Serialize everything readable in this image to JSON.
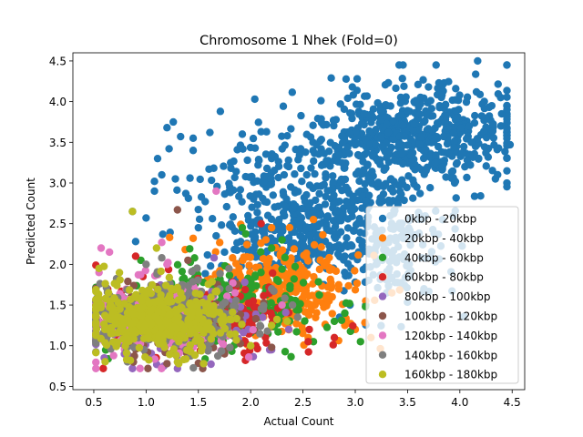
{
  "chart_data": {
    "type": "scatter",
    "title": "Chromosome 1 Nhek (Fold=0)",
    "xlabel": "Actual Count",
    "ylabel": "Predicted Count",
    "xlim": [
      0.3,
      4.62
    ],
    "ylim": [
      0.46,
      4.6
    ],
    "x_ticks": [
      0.5,
      1.0,
      1.5,
      2.0,
      2.5,
      3.0,
      3.5,
      4.0,
      4.5
    ],
    "y_ticks": [
      0.5,
      1.0,
      1.5,
      2.0,
      2.5,
      3.0,
      3.5,
      4.0,
      4.5
    ],
    "x_tick_labels": [
      "0.5",
      "1.0",
      "1.5",
      "2.0",
      "2.5",
      "3.0",
      "3.5",
      "4.0",
      "4.5"
    ],
    "y_tick_labels": [
      "0.5",
      "1.0",
      "1.5",
      "2.0",
      "2.5",
      "3.0",
      "3.5",
      "4.0",
      "4.5"
    ],
    "grid": false,
    "legend_position": "lower-right",
    "series": [
      {
        "name": "0kbp - 20kbp",
        "color": "#1f77b4",
        "points": [
          [
            4.17,
            4.5
          ],
          [
            2.77,
            4.29
          ],
          [
            4.39,
            4.05
          ],
          [
            4.28,
            3.93
          ],
          [
            3.85,
            4.23
          ],
          [
            3.8,
            4.23
          ],
          [
            4.48,
            3.47
          ],
          [
            1.71,
            3.88
          ],
          [
            1.26,
            3.75
          ],
          [
            1.2,
            3.68
          ],
          [
            1.61,
            3.62
          ],
          [
            1.33,
            3.57
          ],
          [
            1.45,
            3.55
          ],
          [
            1.45,
            3.4
          ],
          [
            1.22,
            3.42
          ],
          [
            2.1,
            3.63
          ],
          [
            1.92,
            3.6
          ],
          [
            1.11,
            3.3
          ],
          [
            1.15,
            3.1
          ],
          [
            1.08,
            3.02
          ],
          [
            1.28,
            3.05
          ],
          [
            1.42,
            3.06
          ],
          [
            1.38,
            2.87
          ],
          [
            1.08,
            2.9
          ],
          [
            1.0,
            2.57
          ],
          [
            0.87,
            2.65
          ],
          [
            1.16,
            2.37
          ],
          [
            0.9,
            2.28
          ],
          [
            1.5,
            2.45
          ],
          [
            1.67,
            2.35
          ],
          [
            1.8,
            2.95
          ],
          [
            2.2,
            3.3
          ],
          [
            2.35,
            3.58
          ],
          [
            2.32,
            3.1
          ],
          [
            3.3,
            3.95
          ],
          [
            3.6,
            4.21
          ],
          [
            3.7,
            4.18
          ],
          [
            3.2,
            3.3
          ],
          [
            3.95,
            3.0
          ],
          [
            4.4,
            3.85
          ],
          [
            4.15,
            3.45
          ],
          [
            3.1,
            2.7
          ],
          [
            2.9,
            2.1
          ],
          [
            2.7,
            1.75
          ],
          [
            3.2,
            2.0
          ],
          [
            2.95,
            1.5
          ],
          [
            3.1,
            1.5
          ],
          [
            3.3,
            1.65
          ],
          [
            2.85,
            1.35
          ],
          [
            1.75,
            2.15
          ],
          [
            1.92,
            2.05
          ]
        ],
        "clusters": [
          {
            "cx": 3.6,
            "cy": 3.6,
            "sx": 0.45,
            "sy": 0.3,
            "n": 500,
            "seed": 11
          },
          {
            "cx": 2.9,
            "cy": 2.9,
            "sx": 0.45,
            "sy": 0.45,
            "n": 280,
            "seed": 12
          },
          {
            "cx": 2.3,
            "cy": 2.35,
            "sx": 0.4,
            "sy": 0.3,
            "n": 220,
            "seed": 13
          },
          {
            "cx": 3.3,
            "cy": 2.2,
            "sx": 0.3,
            "sy": 0.35,
            "n": 130,
            "seed": 14
          },
          {
            "cx": 2.0,
            "cy": 3.0,
            "sx": 0.35,
            "sy": 0.35,
            "n": 60,
            "seed": 15
          }
        ]
      },
      {
        "name": "20kbp - 40kbp",
        "color": "#ff7f0e",
        "points": [
          [
            3.35,
            1.65
          ],
          [
            2.2,
            2.45
          ],
          [
            2.6,
            2.55
          ],
          [
            3.1,
            1.55
          ],
          [
            3.15,
            1.1
          ],
          [
            2.55,
            1.1
          ],
          [
            1.45,
            2.32
          ],
          [
            3.0,
            1.2
          ],
          [
            2.9,
            1.25
          ],
          [
            2.75,
            1.55
          ]
        ],
        "clusters": [
          {
            "cx": 2.3,
            "cy": 1.7,
            "sx": 0.38,
            "sy": 0.3,
            "n": 280,
            "seed": 21
          }
        ]
      },
      {
        "name": "40kbp - 60kbp",
        "color": "#2ca02c",
        "points": [
          [
            2.2,
            2.2
          ],
          [
            2.3,
            2.3
          ],
          [
            2.8,
            1.3
          ],
          [
            2.9,
            1.4
          ],
          [
            1.92,
            2.45
          ],
          [
            2.6,
            1.05
          ],
          [
            0.95,
            2.05
          ],
          [
            3.05,
            1.05
          ]
        ],
        "clusters": [
          {
            "cx": 1.8,
            "cy": 1.5,
            "sx": 0.45,
            "sy": 0.28,
            "n": 220,
            "seed": 31
          }
        ]
      },
      {
        "name": "60kbp - 80kbp",
        "color": "#d62728",
        "points": [
          [
            2.1,
            2.5
          ],
          [
            1.95,
            0.82
          ],
          [
            2.05,
            1.0
          ],
          [
            2.55,
            1.05
          ],
          [
            2.8,
            1.1
          ],
          [
            0.97,
            1.85
          ],
          [
            0.9,
            2.1
          ]
        ],
        "clusters": [
          {
            "cx": 1.5,
            "cy": 1.35,
            "sx": 0.45,
            "sy": 0.23,
            "n": 200,
            "seed": 41
          }
        ]
      },
      {
        "name": "80kbp - 100kbp",
        "color": "#9467bd",
        "points": [
          [
            0.87,
            0.72
          ],
          [
            1.17,
            0.75
          ],
          [
            1.65,
            2.08
          ],
          [
            0.6,
            0.85
          ],
          [
            2.2,
            0.95
          ],
          [
            1.3,
            0.72
          ]
        ],
        "clusters": [
          {
            "cx": 1.2,
            "cy": 1.25,
            "sx": 0.4,
            "sy": 0.2,
            "n": 160,
            "seed": 51
          }
        ]
      },
      {
        "name": "100kbp - 120kbp",
        "color": "#8c564b",
        "points": [
          [
            1.3,
            2.67
          ],
          [
            1.4,
            2.05
          ],
          [
            1.2,
            0.78
          ],
          [
            0.55,
            1.3
          ],
          [
            2.2,
            0.98
          ],
          [
            1.75,
            0.9
          ]
        ],
        "clusters": [
          {
            "cx": 1.15,
            "cy": 1.3,
            "sx": 0.4,
            "sy": 0.2,
            "n": 200,
            "seed": 61
          }
        ]
      },
      {
        "name": "120kbp - 140kbp",
        "color": "#e377c2",
        "points": [
          [
            1.67,
            2.9
          ],
          [
            0.57,
            2.2
          ],
          [
            0.65,
            2.15
          ],
          [
            1.15,
            2.27
          ],
          [
            1.2,
            2.0
          ],
          [
            1.85,
            1.65
          ],
          [
            0.55,
            1.9
          ],
          [
            2.3,
            1.5
          ]
        ],
        "clusters": [
          {
            "cx": 1.1,
            "cy": 1.35,
            "sx": 0.4,
            "sy": 0.23,
            "n": 200,
            "seed": 71
          }
        ]
      },
      {
        "name": "140kbp - 160kbp",
        "color": "#7f7f7f",
        "points": [
          [
            1.15,
            2.08
          ],
          [
            2.4,
            1.5
          ],
          [
            2.45,
            1.35
          ],
          [
            0.65,
            1.0
          ],
          [
            2.2,
            1.7
          ],
          [
            1.0,
            2.0
          ]
        ],
        "clusters": [
          {
            "cx": 1.2,
            "cy": 1.4,
            "sx": 0.45,
            "sy": 0.23,
            "n": 240,
            "seed": 81
          }
        ]
      },
      {
        "name": "160kbp - 180kbp",
        "color": "#bcbd22",
        "points": [
          [
            0.87,
            2.65
          ],
          [
            1.1,
            2.2
          ],
          [
            1.55,
            0.78
          ],
          [
            0.55,
            1.95
          ],
          [
            2.35,
            1.3
          ],
          [
            2.0,
            1.0
          ],
          [
            0.85,
            0.82
          ],
          [
            1.3,
            0.8
          ],
          [
            2.2,
            1.25
          ]
        ],
        "clusters": [
          {
            "cx": 1.1,
            "cy": 1.32,
            "sx": 0.38,
            "sy": 0.2,
            "n": 420,
            "seed": 91
          }
        ]
      }
    ]
  }
}
